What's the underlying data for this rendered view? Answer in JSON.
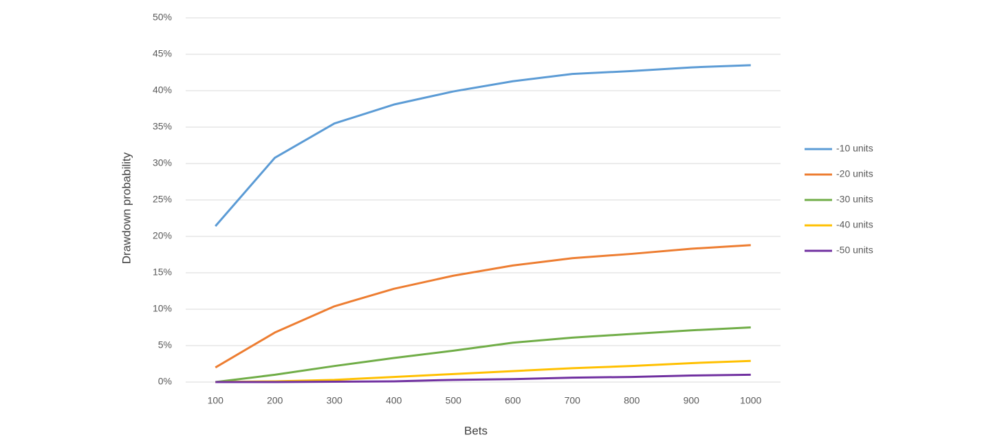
{
  "chart_data": {
    "type": "line",
    "x_label": "Bets",
    "y_label": "Drawdown probability",
    "categories": [
      "100",
      "200",
      "300",
      "400",
      "500",
      "600",
      "700",
      "800",
      "900",
      "1000"
    ],
    "series": [
      {
        "name": "-10 units",
        "color": "#5b9bd5",
        "values": [
          21.4,
          30.8,
          35.5,
          38.1,
          39.9,
          41.3,
          42.3,
          42.7,
          43.2,
          43.5
        ]
      },
      {
        "name": "-20 units",
        "color": "#ed7d31",
        "values": [
          2.0,
          6.8,
          10.4,
          12.8,
          14.6,
          16.0,
          17.0,
          17.6,
          18.3,
          18.8
        ]
      },
      {
        "name": "-30 units",
        "color": "#70ad47",
        "values": [
          0.0,
          1.0,
          2.2,
          3.3,
          4.3,
          5.4,
          6.1,
          6.6,
          7.1,
          7.5
        ]
      },
      {
        "name": "-40 units",
        "color": "#ffc000",
        "values": [
          0.0,
          0.1,
          0.3,
          0.7,
          1.1,
          1.5,
          1.9,
          2.2,
          2.6,
          2.9
        ]
      },
      {
        "name": "-50 units",
        "color": "#7030a0",
        "values": [
          0.0,
          0.0,
          0.05,
          0.1,
          0.3,
          0.4,
          0.6,
          0.7,
          0.9,
          1.0
        ]
      }
    ],
    "ylim": [
      0,
      50
    ],
    "yticks": [
      {
        "value": 0,
        "label": "0%"
      },
      {
        "value": 5,
        "label": "5%"
      },
      {
        "value": 10,
        "label": "10%"
      },
      {
        "value": 15,
        "label": "15%"
      },
      {
        "value": 20,
        "label": "20%"
      },
      {
        "value": 25,
        "label": "25%"
      },
      {
        "value": 30,
        "label": "30%"
      },
      {
        "value": 35,
        "label": "35%"
      },
      {
        "value": 40,
        "label": "40%"
      },
      {
        "value": 45,
        "label": "45%"
      },
      {
        "value": 50,
        "label": "50%"
      }
    ],
    "grid": true,
    "legend": "right"
  }
}
